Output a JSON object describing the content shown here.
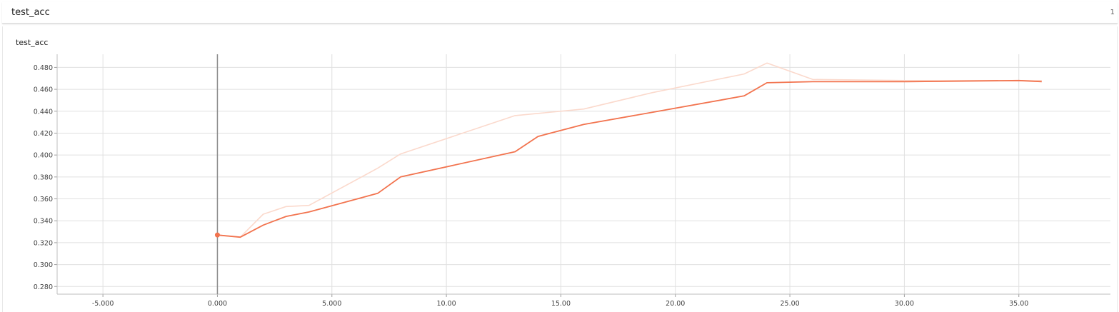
{
  "header": {
    "title": "test_acc",
    "count": "1"
  },
  "card": {
    "title": "test_acc"
  },
  "chart_data": {
    "type": "line",
    "title": "test_acc",
    "xlim": [
      -7.0,
      39.0
    ],
    "ylim": [
      0.273,
      0.492
    ],
    "xticks": [
      "-5.000",
      "0.000",
      "5.000",
      "10.00",
      "15.00",
      "20.00",
      "25.00",
      "30.00",
      "35.00"
    ],
    "xtick_values": [
      -5,
      0,
      5,
      10,
      15,
      20,
      25,
      30,
      35
    ],
    "yticks": [
      "0.280",
      "0.300",
      "0.320",
      "0.340",
      "0.360",
      "0.380",
      "0.400",
      "0.420",
      "0.440",
      "0.460",
      "0.480"
    ],
    "ytick_values": [
      0.28,
      0.3,
      0.32,
      0.34,
      0.36,
      0.38,
      0.4,
      0.42,
      0.44,
      0.46,
      0.48
    ],
    "grid": true,
    "series": [
      {
        "role": "raw",
        "color": "#fbd9cc",
        "x": [
          0,
          1,
          2,
          3,
          4,
          7,
          8,
          13,
          16,
          19,
          23,
          24,
          26,
          30,
          35,
          36
        ],
        "y": [
          0.327,
          0.325,
          0.346,
          0.353,
          0.354,
          0.388,
          0.401,
          0.436,
          0.442,
          0.457,
          0.474,
          0.484,
          0.469,
          0.468,
          0.468,
          0.468
        ]
      },
      {
        "role": "smoothed",
        "color": "#f2734e",
        "x": [
          0,
          1,
          2,
          3,
          4,
          7,
          8,
          13,
          14,
          16,
          19,
          23,
          24,
          26,
          30,
          35,
          36
        ],
        "y": [
          0.327,
          0.325,
          0.336,
          0.344,
          0.348,
          0.365,
          0.38,
          0.403,
          0.417,
          0.428,
          0.439,
          0.454,
          0.466,
          0.467,
          0.467,
          0.468,
          0.467
        ]
      }
    ]
  }
}
